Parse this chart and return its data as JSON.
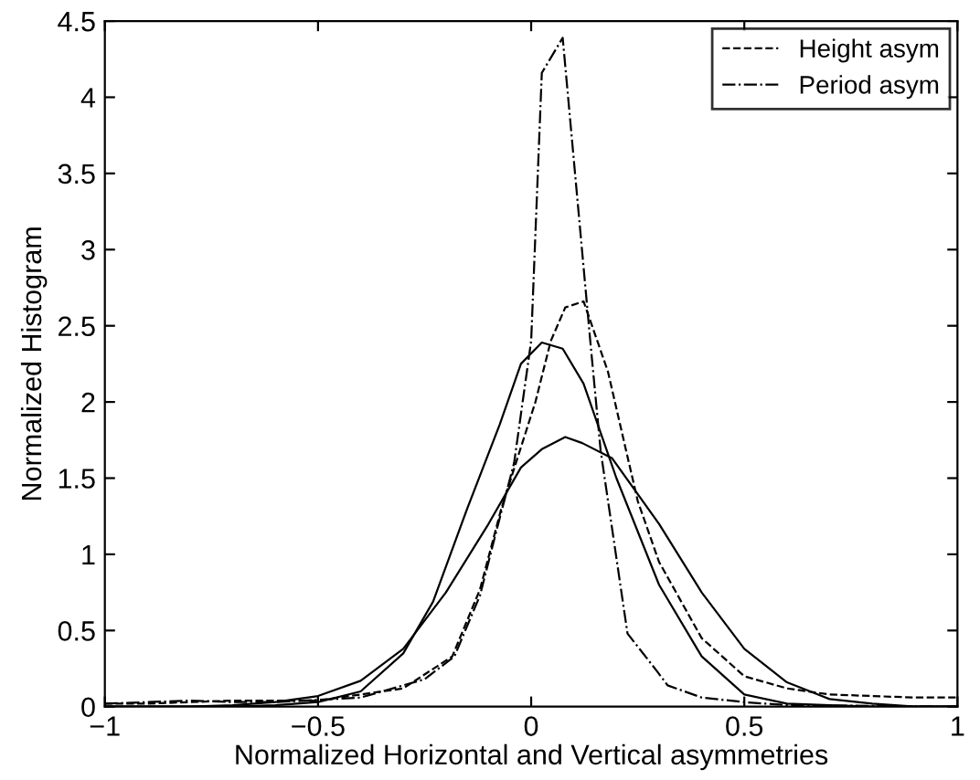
{
  "chart_data": {
    "type": "line",
    "xlabel": "Normalized Horizontal and Vertical asymmetries",
    "ylabel": "Normalized Histogram",
    "xlim": [
      -1,
      1
    ],
    "ylim": [
      0,
      4.5
    ],
    "xticks": [
      {
        "value": -1,
        "label": "−1"
      },
      {
        "value": -0.5,
        "label": "−0.5"
      },
      0,
      0.5,
      1
    ],
    "yticks": [
      0,
      0.5,
      1,
      1.5,
      2,
      2.5,
      3,
      3.5,
      4,
      4.5
    ],
    "grid": false,
    "legend": "top right",
    "marker": "none",
    "series": [
      {
        "name": "Height asym",
        "color": "#000000",
        "line_style": "dashed",
        "x": [
          -1,
          -0.9,
          -0.7,
          -0.5,
          -0.3,
          -0.185,
          -0.12,
          -0.07,
          0.01,
          0.046,
          0.08,
          0.123,
          0.18,
          0.25,
          0.3,
          0.4,
          0.5,
          0.6,
          0.7,
          0.8,
          0.9,
          1
        ],
        "values": [
          0.02,
          0.02,
          0.04,
          0.04,
          0.12,
          0.33,
          0.77,
          1.3,
          2.0,
          2.4,
          2.62,
          2.66,
          2.2,
          1.35,
          0.95,
          0.45,
          0.2,
          0.12,
          0.08,
          0.07,
          0.06,
          0.06
        ]
      },
      {
        "name": "Period asym",
        "color": "#000000",
        "line_style": "dashdot",
        "x": [
          -1,
          -0.8,
          -0.7,
          -0.6,
          -0.4,
          -0.25,
          -0.18,
          -0.12,
          -0.08,
          -0.04,
          0.0,
          0.025,
          0.074,
          0.14,
          0.163,
          0.226,
          0.296,
          0.32,
          0.4,
          0.5,
          0.6,
          1
        ],
        "values": [
          0.02,
          0.04,
          0.03,
          0.03,
          0.06,
          0.18,
          0.33,
          0.73,
          1.17,
          1.6,
          2.4,
          4.16,
          4.39,
          2.36,
          1.68,
          0.48,
          0.23,
          0.14,
          0.06,
          0.03,
          0.01,
          0
        ]
      },
      {
        "color": "#000000",
        "line_style": "solid",
        "x": [
          -1,
          -0.8,
          -0.7,
          -0.6,
          -0.5,
          -0.4,
          -0.3,
          -0.2,
          -0.1,
          -0.024,
          0.025,
          0.08,
          0.12,
          0.19,
          0.3,
          0.4,
          0.5,
          0.6,
          0.7,
          0.8,
          0.9,
          1
        ],
        "values": [
          0,
          0,
          0.01,
          0.03,
          0.07,
          0.17,
          0.38,
          0.75,
          1.2,
          1.57,
          1.69,
          1.77,
          1.73,
          1.63,
          1.2,
          0.75,
          0.38,
          0.16,
          0.05,
          0.02,
          0,
          0
        ]
      },
      {
        "color": "#000000",
        "line_style": "solid",
        "x": [
          -1,
          -0.7,
          -0.6,
          -0.5,
          -0.4,
          -0.3,
          -0.23,
          -0.15,
          -0.074,
          -0.024,
          0.025,
          0.074,
          0.123,
          0.2,
          0.3,
          0.4,
          0.5,
          0.6,
          0.7,
          0.8,
          1
        ],
        "values": [
          0,
          0,
          0.01,
          0.03,
          0.1,
          0.35,
          0.69,
          1.3,
          1.85,
          2.25,
          2.39,
          2.35,
          2.12,
          1.5,
          0.8,
          0.33,
          0.08,
          0.02,
          0.01,
          0,
          0
        ]
      }
    ]
  }
}
